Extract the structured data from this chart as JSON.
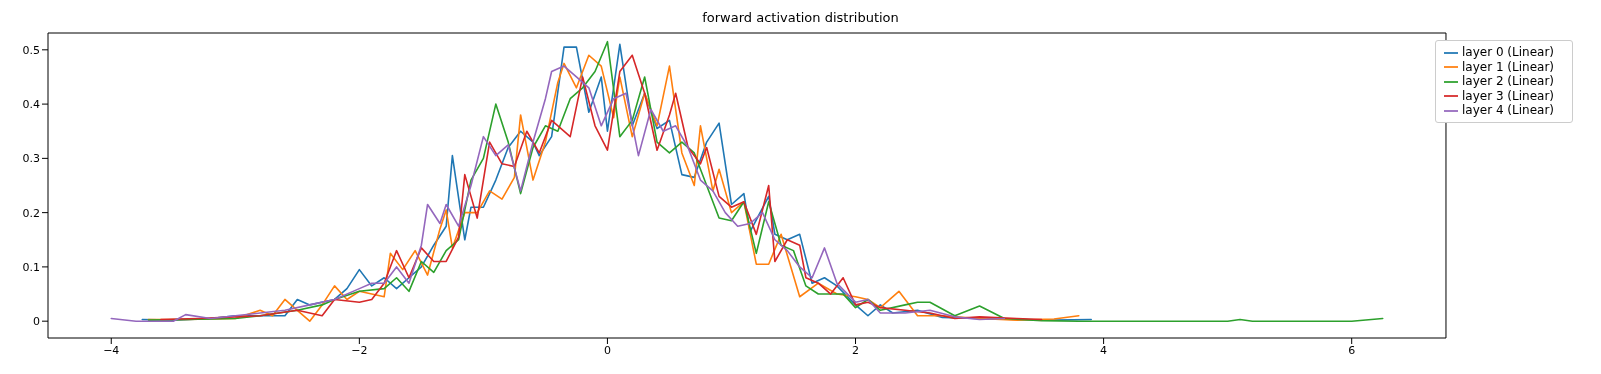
{
  "chart_data": {
    "type": "line",
    "title": "forward activation distribution",
    "xlim": [
      -4.51,
      6.76
    ],
    "ylim": [
      -0.031,
      0.531
    ],
    "xticks": [
      -4,
      -2,
      0,
      2,
      4,
      6
    ],
    "yticks": [
      0,
      0.1,
      0.2,
      0.3,
      0.4,
      0.5
    ],
    "grid": false,
    "legend": "top right",
    "marker": "none",
    "line_style": "solid",
    "series": [
      {
        "name": "layer 0 (Linear)",
        "color": "#1f77b4",
        "x": [
          -3.75,
          -3.5,
          -3.2,
          -3.0,
          -2.8,
          -2.6,
          -2.5,
          -2.4,
          -2.2,
          -2.1,
          -2.0,
          -1.9,
          -1.8,
          -1.7,
          -1.6,
          -1.5,
          -1.4,
          -1.3,
          -1.25,
          -1.15,
          -1.1,
          -1.0,
          -0.9,
          -0.8,
          -0.7,
          -0.6,
          -0.55,
          -0.45,
          -0.35,
          -0.25,
          -0.15,
          -0.05,
          0.0,
          0.1,
          0.2,
          0.3,
          0.4,
          0.5,
          0.6,
          0.7,
          0.8,
          0.9,
          1.0,
          1.1,
          1.15,
          1.3,
          1.35,
          1.45,
          1.55,
          1.65,
          1.75,
          1.85,
          2.0,
          2.1,
          2.2,
          2.3,
          2.5,
          2.7,
          3.0,
          3.3,
          3.6,
          3.9
        ],
        "values": [
          0.003,
          0.002,
          0.005,
          0.01,
          0.01,
          0.01,
          0.04,
          0.03,
          0.04,
          0.06,
          0.095,
          0.065,
          0.08,
          0.06,
          0.08,
          0.1,
          0.14,
          0.175,
          0.305,
          0.15,
          0.21,
          0.21,
          0.26,
          0.32,
          0.35,
          0.33,
          0.305,
          0.34,
          0.505,
          0.505,
          0.385,
          0.45,
          0.35,
          0.51,
          0.36,
          0.42,
          0.355,
          0.37,
          0.27,
          0.265,
          0.33,
          0.365,
          0.215,
          0.235,
          0.165,
          0.23,
          0.16,
          0.15,
          0.16,
          0.07,
          0.08,
          0.065,
          0.03,
          0.01,
          0.03,
          0.015,
          0.02,
          0.007,
          0.005,
          0.003,
          0.002,
          0.003
        ]
      },
      {
        "name": "layer 1 (Linear)",
        "color": "#ff7f0e",
        "x": [
          -3.7,
          -3.4,
          -3.0,
          -2.8,
          -2.7,
          -2.6,
          -2.5,
          -2.4,
          -2.3,
          -2.2,
          -2.1,
          -2.0,
          -1.8,
          -1.75,
          -1.65,
          -1.55,
          -1.45,
          -1.35,
          -1.3,
          -1.25,
          -1.15,
          -1.05,
          -0.95,
          -0.85,
          -0.75,
          -0.7,
          -0.6,
          -0.5,
          -0.4,
          -0.35,
          -0.25,
          -0.15,
          -0.05,
          0.05,
          0.1,
          0.2,
          0.3,
          0.4,
          0.5,
          0.6,
          0.7,
          0.75,
          0.85,
          0.9,
          1.0,
          1.1,
          1.2,
          1.3,
          1.4,
          1.55,
          1.7,
          1.85,
          2.0,
          2.1,
          2.2,
          2.35,
          2.5,
          2.7,
          3.0,
          3.3,
          3.6,
          3.8
        ],
        "values": [
          0.003,
          0.003,
          0.005,
          0.02,
          0.01,
          0.04,
          0.02,
          0.0,
          0.03,
          0.065,
          0.04,
          0.055,
          0.045,
          0.125,
          0.095,
          0.13,
          0.085,
          0.17,
          0.205,
          0.135,
          0.2,
          0.2,
          0.24,
          0.225,
          0.265,
          0.38,
          0.26,
          0.33,
          0.44,
          0.475,
          0.43,
          0.49,
          0.47,
          0.375,
          0.45,
          0.34,
          0.42,
          0.36,
          0.47,
          0.31,
          0.25,
          0.36,
          0.24,
          0.28,
          0.2,
          0.22,
          0.105,
          0.105,
          0.16,
          0.045,
          0.07,
          0.05,
          0.045,
          0.04,
          0.025,
          0.055,
          0.01,
          0.01,
          0.005,
          0.002,
          0.004,
          0.01
        ]
      },
      {
        "name": "layer 2 (Linear)",
        "color": "#2ca02c",
        "x": [
          -3.7,
          -3.4,
          -3.0,
          -2.8,
          -2.5,
          -2.3,
          -2.2,
          -2.0,
          -1.8,
          -1.7,
          -1.6,
          -1.5,
          -1.4,
          -1.3,
          -1.2,
          -1.1,
          -1.0,
          -0.9,
          -0.8,
          -0.7,
          -0.6,
          -0.5,
          -0.4,
          -0.3,
          -0.2,
          -0.1,
          0.0,
          0.1,
          0.2,
          0.3,
          0.4,
          0.5,
          0.6,
          0.7,
          0.8,
          0.9,
          1.0,
          1.1,
          1.2,
          1.3,
          1.4,
          1.5,
          1.6,
          1.7,
          1.8,
          1.9,
          2.0,
          2.1,
          2.2,
          2.4,
          2.5,
          2.6,
          2.8,
          3.0,
          3.2,
          3.5,
          3.8,
          4.0,
          5.0,
          5.1,
          5.2,
          6.0,
          6.25
        ],
        "values": [
          0.002,
          0.003,
          0.005,
          0.01,
          0.02,
          0.03,
          0.04,
          0.055,
          0.06,
          0.08,
          0.055,
          0.11,
          0.09,
          0.13,
          0.15,
          0.26,
          0.3,
          0.4,
          0.33,
          0.235,
          0.32,
          0.36,
          0.35,
          0.41,
          0.43,
          0.46,
          0.515,
          0.34,
          0.37,
          0.45,
          0.33,
          0.31,
          0.33,
          0.31,
          0.25,
          0.19,
          0.185,
          0.22,
          0.125,
          0.22,
          0.14,
          0.13,
          0.065,
          0.05,
          0.05,
          0.05,
          0.025,
          0.04,
          0.02,
          0.03,
          0.035,
          0.035,
          0.01,
          0.028,
          0.005,
          0.001,
          0.0,
          0.0,
          0.0,
          0.003,
          0.0,
          0.0,
          0.005
        ]
      },
      {
        "name": "layer 3 (Linear)",
        "color": "#d62728",
        "x": [
          -3.6,
          -3.3,
          -3.0,
          -2.8,
          -2.5,
          -2.3,
          -2.2,
          -2.0,
          -1.9,
          -1.8,
          -1.7,
          -1.6,
          -1.5,
          -1.4,
          -1.3,
          -1.2,
          -1.15,
          -1.05,
          -0.95,
          -0.85,
          -0.75,
          -0.65,
          -0.55,
          -0.45,
          -0.3,
          -0.2,
          -0.1,
          0.0,
          0.1,
          0.2,
          0.3,
          0.4,
          0.5,
          0.55,
          0.65,
          0.75,
          0.8,
          0.9,
          1.0,
          1.1,
          1.2,
          1.3,
          1.35,
          1.45,
          1.55,
          1.6,
          1.7,
          1.8,
          1.9,
          2.0,
          2.1,
          2.2,
          2.4,
          2.6,
          2.8,
          3.0,
          3.3,
          3.5
        ],
        "values": [
          0.003,
          0.005,
          0.008,
          0.01,
          0.02,
          0.01,
          0.04,
          0.035,
          0.04,
          0.07,
          0.13,
          0.08,
          0.135,
          0.11,
          0.11,
          0.155,
          0.27,
          0.19,
          0.33,
          0.29,
          0.285,
          0.35,
          0.31,
          0.37,
          0.34,
          0.45,
          0.36,
          0.315,
          0.46,
          0.49,
          0.42,
          0.315,
          0.38,
          0.42,
          0.32,
          0.29,
          0.32,
          0.23,
          0.21,
          0.22,
          0.16,
          0.25,
          0.11,
          0.15,
          0.14,
          0.08,
          0.07,
          0.05,
          0.08,
          0.03,
          0.035,
          0.025,
          0.02,
          0.015,
          0.005,
          0.008,
          0.005,
          0.003
        ]
      },
      {
        "name": "layer 4 (Linear)",
        "color": "#9467bd",
        "x": [
          -4.0,
          -3.8,
          -3.5,
          -3.4,
          -3.2,
          -3.0,
          -2.8,
          -2.6,
          -2.4,
          -2.2,
          -2.0,
          -1.9,
          -1.8,
          -1.7,
          -1.6,
          -1.5,
          -1.45,
          -1.35,
          -1.3,
          -1.2,
          -1.1,
          -1.0,
          -0.9,
          -0.8,
          -0.7,
          -0.6,
          -0.5,
          -0.45,
          -0.35,
          -0.25,
          -0.15,
          -0.05,
          0.05,
          0.15,
          0.25,
          0.35,
          0.45,
          0.55,
          0.65,
          0.75,
          0.85,
          0.95,
          1.05,
          1.15,
          1.25,
          1.35,
          1.45,
          1.55,
          1.65,
          1.75,
          1.85,
          2.0,
          2.1,
          2.2,
          2.4,
          2.6,
          2.8,
          3.0,
          3.2
        ],
        "values": [
          0.005,
          0.0,
          0.0,
          0.012,
          0.005,
          0.01,
          0.015,
          0.02,
          0.03,
          0.04,
          0.06,
          0.07,
          0.07,
          0.1,
          0.07,
          0.14,
          0.215,
          0.18,
          0.215,
          0.175,
          0.25,
          0.34,
          0.305,
          0.325,
          0.24,
          0.33,
          0.41,
          0.46,
          0.47,
          0.45,
          0.43,
          0.36,
          0.41,
          0.42,
          0.305,
          0.39,
          0.35,
          0.36,
          0.32,
          0.26,
          0.24,
          0.2,
          0.175,
          0.18,
          0.2,
          0.15,
          0.13,
          0.1,
          0.08,
          0.135,
          0.07,
          0.035,
          0.04,
          0.015,
          0.015,
          0.02,
          0.008,
          0.003,
          0.005
        ]
      }
    ]
  }
}
